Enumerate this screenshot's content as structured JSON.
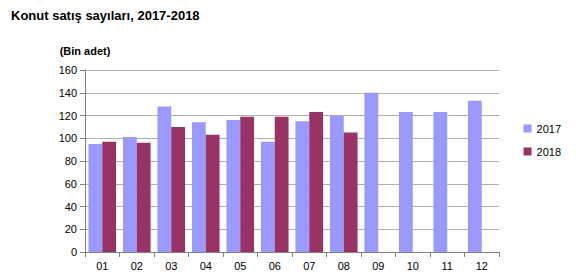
{
  "chart_data": {
    "type": "bar",
    "title": "Konut satış sayıları, 2017-2018",
    "y_label": "(Bin adet)",
    "categories": [
      "01",
      "02",
      "03",
      "04",
      "05",
      "06",
      "07",
      "08",
      "09",
      "10",
      "11",
      "12"
    ],
    "series": [
      {
        "name": "2017",
        "color": "#9999ff",
        "values": [
          95,
          101,
          128,
          114,
          116,
          97,
          115,
          120,
          140,
          123,
          123,
          133
        ]
      },
      {
        "name": "2018",
        "color": "#993366",
        "values": [
          97,
          96,
          110,
          103,
          119,
          119,
          123,
          105,
          null,
          null,
          null,
          null
        ]
      }
    ],
    "ylim": [
      0,
      160
    ],
    "yticks": [
      0,
      20,
      40,
      60,
      80,
      100,
      120,
      140,
      160
    ],
    "grid": true,
    "legend": "right"
  }
}
